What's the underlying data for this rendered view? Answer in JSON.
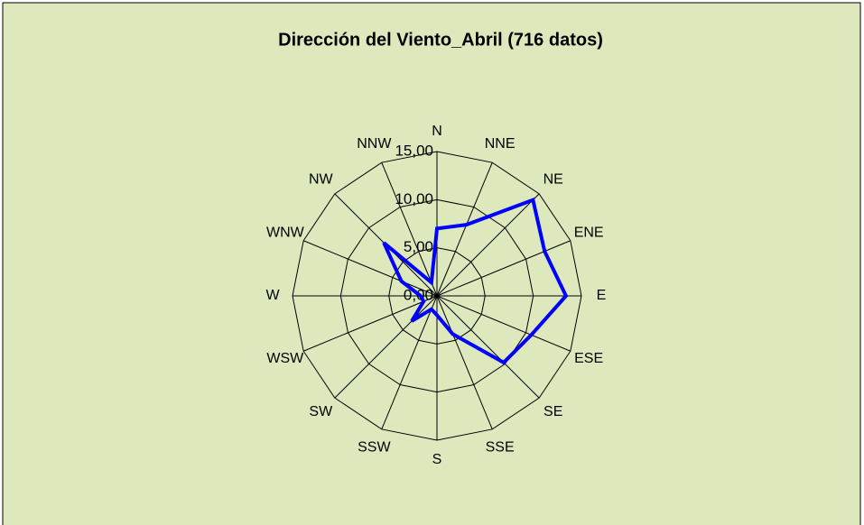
{
  "chart_data": {
    "type": "radar",
    "title": "Dirección del Viento_Abril (716 datos)",
    "categories": [
      "N",
      "NNE",
      "NE",
      "ENE",
      "E",
      "ESE",
      "SE",
      "SSE",
      "S",
      "SSW",
      "SW",
      "WSW",
      "W",
      "WNW",
      "NW",
      "NNW"
    ],
    "series": [
      {
        "name": "Abril",
        "color": "#0000ff",
        "values": [
          7.0,
          8.0,
          14.1,
          12.1,
          13.4,
          10.6,
          9.8,
          4.3,
          2.0,
          1.5,
          3.7,
          1.5,
          1.7,
          4.0,
          7.8,
          1.5
        ]
      }
    ],
    "ylim": [
      0,
      15
    ],
    "yticks": [
      {
        "value": 0,
        "label": "0,00"
      },
      {
        "value": 5,
        "label": "5,00"
      },
      {
        "value": 10,
        "label": "10,00"
      },
      {
        "value": 15,
        "label": "15,00"
      }
    ],
    "grid": true
  }
}
